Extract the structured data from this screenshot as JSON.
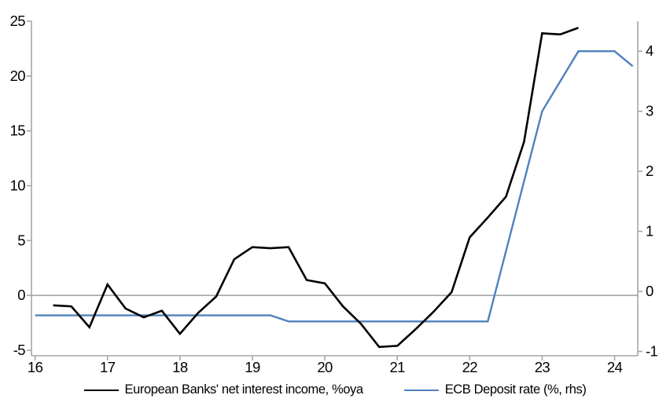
{
  "page": {
    "background": "#ffffff",
    "axis_color": "#a6a6a6",
    "text_color": "#000000"
  },
  "chart_data": {
    "type": "line",
    "title": "",
    "x_axis": {
      "tick_values": [
        16,
        17,
        18,
        19,
        20,
        21,
        22,
        23,
        24
      ],
      "tick_labels": [
        "16",
        "17",
        "18",
        "19",
        "20",
        "21",
        "22",
        "23",
        "24"
      ],
      "min": 15.95,
      "max": 24.32
    },
    "left_axis": {
      "tick_values": [
        -5,
        0,
        5,
        10,
        15,
        20,
        25
      ],
      "tick_labels": [
        "-5",
        "0",
        "5",
        "10",
        "15",
        "20",
        "25"
      ],
      "min": -5.5,
      "max": 25,
      "zero_line": true
    },
    "right_axis": {
      "tick_values": [
        -1,
        0,
        1,
        2,
        3,
        4
      ],
      "tick_labels": [
        "-1",
        "0",
        "1",
        "2",
        "3",
        "4"
      ],
      "min": -1.072,
      "max": 4.5
    },
    "grid": "zero-line-only",
    "legend_position": "bottom",
    "series": [
      {
        "name": "European Banks' net interest income, %oya",
        "axis": "left",
        "color": "#000000",
        "stroke_width": 2.6,
        "x": [
          16.25,
          16.5,
          16.75,
          17.0,
          17.25,
          17.5,
          17.75,
          18.0,
          18.25,
          18.5,
          18.75,
          19.0,
          19.25,
          19.5,
          19.75,
          20.0,
          20.25,
          20.5,
          20.75,
          21.0,
          21.25,
          21.5,
          21.75,
          22.0,
          22.25,
          22.5,
          22.75,
          23.0,
          23.25,
          23.5
        ],
        "values": [
          -0.9,
          -1.0,
          -2.9,
          1.0,
          -1.2,
          -2.0,
          -1.4,
          -3.5,
          -1.6,
          -0.1,
          3.3,
          4.4,
          4.3,
          4.4,
          1.4,
          1.1,
          -1.0,
          -2.6,
          -4.7,
          -4.6,
          -3.1,
          -1.5,
          0.3,
          5.3,
          7.1,
          9.0,
          14.0,
          23.9,
          23.8,
          24.4
        ]
      },
      {
        "name": "ECB Deposit rate (%, rhs)",
        "axis": "right",
        "color": "#4f81bd",
        "stroke_width": 2.4,
        "x": [
          16.0,
          19.25,
          19.5,
          22.25,
          23.0,
          23.5,
          24.0,
          24.25
        ],
        "values": [
          -0.4,
          -0.4,
          -0.5,
          -0.5,
          3.0,
          4.0,
          4.0,
          3.75
        ]
      }
    ],
    "legend": {
      "items": [
        {
          "label": "European Banks' net interest income, %oya",
          "color": "#000000"
        },
        {
          "label": "ECB Deposit rate (%, rhs)",
          "color": "#4f81bd"
        }
      ]
    }
  }
}
